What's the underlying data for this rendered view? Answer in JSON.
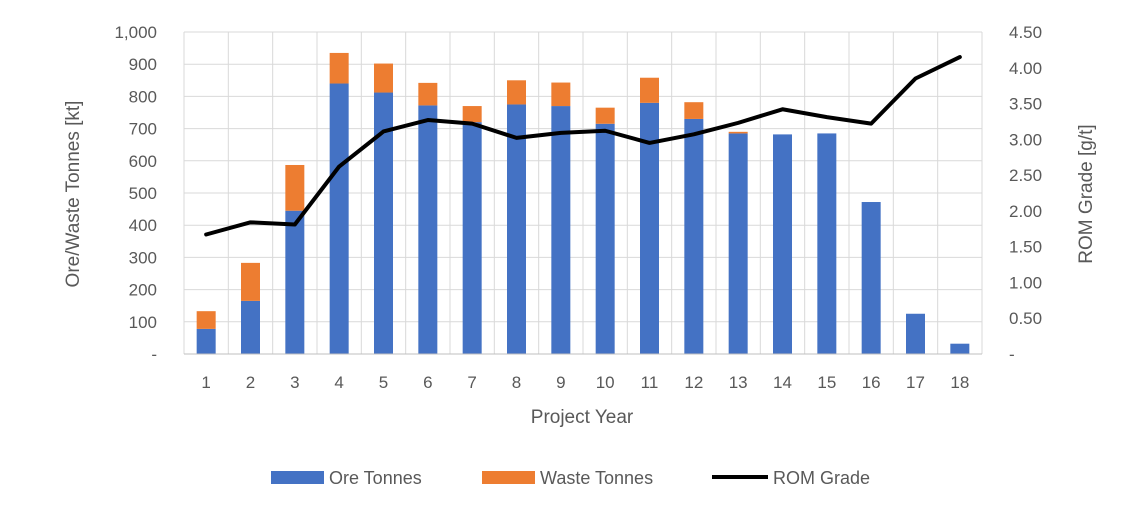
{
  "chart_data": {
    "type": "bar",
    "title": "",
    "xlabel": "Project Year",
    "ylabel": "Ore/Waste Tonnes [kt]",
    "y2label": "ROM Grade [g/t]",
    "categories": [
      "1",
      "2",
      "3",
      "4",
      "5",
      "6",
      "7",
      "8",
      "9",
      "10",
      "11",
      "12",
      "13",
      "14",
      "15",
      "16",
      "17",
      "18"
    ],
    "ylim": [
      0,
      1000
    ],
    "y2lim": [
      0,
      4.5
    ],
    "yticks": [
      "-",
      "100",
      "200",
      "300",
      "400",
      "500",
      "600",
      "700",
      "800",
      "900",
      "1,000"
    ],
    "y2ticks": [
      "-",
      "0.50",
      "1.00",
      "1.50",
      "2.00",
      "2.50",
      "3.00",
      "3.50",
      "4.00",
      "4.50"
    ],
    "grid": true,
    "legend_position": "bottom",
    "series": [
      {
        "name": "Ore Tonnes",
        "type": "bar",
        "stack": "tonnes",
        "axis": "left",
        "color": "#4472C4",
        "values": [
          78,
          165,
          445,
          840,
          812,
          772,
          720,
          775,
          770,
          715,
          780,
          730,
          685,
          682,
          685,
          472,
          125,
          32
        ]
      },
      {
        "name": "Waste Tonnes",
        "type": "bar",
        "stack": "tonnes",
        "axis": "left",
        "color": "#ED7D31",
        "values": [
          55,
          118,
          142,
          95,
          90,
          70,
          50,
          75,
          73,
          50,
          78,
          52,
          5,
          0,
          0,
          0,
          0,
          0
        ]
      },
      {
        "name": "ROM Grade",
        "type": "line",
        "axis": "right",
        "color": "#000000",
        "values": [
          1.67,
          1.84,
          1.81,
          2.62,
          3.11,
          3.27,
          3.22,
          3.02,
          3.09,
          3.12,
          2.95,
          3.07,
          3.23,
          3.42,
          3.31,
          3.22,
          3.85,
          4.15
        ]
      }
    ]
  }
}
